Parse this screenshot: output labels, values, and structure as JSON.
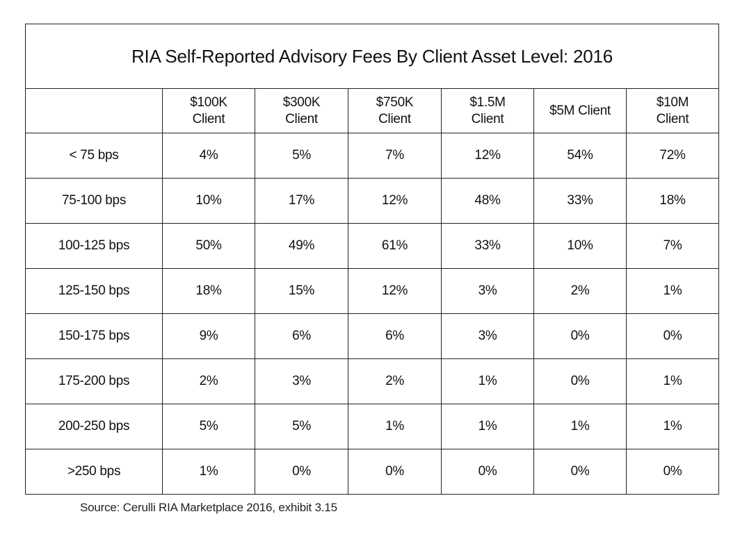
{
  "chart_data": {
    "type": "table",
    "title": "RIA Self-Reported Advisory Fees By Client Asset Level: 2016",
    "columns": [
      [
        "$100K",
        "Client"
      ],
      [
        "$300K",
        "Client"
      ],
      [
        "$750K",
        "Client"
      ],
      [
        "$1.5M",
        "Client"
      ],
      [
        "$5M Client"
      ],
      [
        "$10M",
        "Client"
      ]
    ],
    "rows": [
      {
        "label": "< 75 bps",
        "values": [
          "4%",
          "5%",
          "7%",
          "12%",
          "54%",
          "72%"
        ]
      },
      {
        "label": "75-100 bps",
        "values": [
          "10%",
          "17%",
          "12%",
          "48%",
          "33%",
          "18%"
        ]
      },
      {
        "label": "100-125 bps",
        "values": [
          "50%",
          "49%",
          "61%",
          "33%",
          "10%",
          "7%"
        ]
      },
      {
        "label": "125-150 bps",
        "values": [
          "18%",
          "15%",
          "12%",
          "3%",
          "2%",
          "1%"
        ]
      },
      {
        "label": "150-175 bps",
        "values": [
          "9%",
          "6%",
          "6%",
          "3%",
          "0%",
          "0%"
        ]
      },
      {
        "label": "175-200 bps",
        "values": [
          "2%",
          "3%",
          "2%",
          "1%",
          "0%",
          "1%"
        ]
      },
      {
        "label": "200-250 bps",
        "values": [
          "5%",
          "5%",
          "1%",
          "1%",
          "1%",
          "1%"
        ]
      },
      {
        "label": ">250 bps",
        "values": [
          "1%",
          "0%",
          "0%",
          "0%",
          "0%",
          "0%"
        ]
      }
    ],
    "source": "Source: Cerulli RIA Marketplace 2016, exhibit 3.15"
  }
}
